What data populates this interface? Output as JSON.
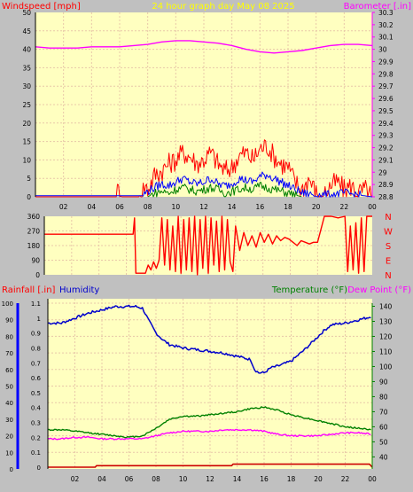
{
  "header": {
    "windspeed_label": "Windspeed [mph]",
    "title": "24 hour graph day   May 08 2025",
    "barometer_label": "Barometer [.in]"
  },
  "direction_letters": [
    "N",
    "W",
    "S",
    "E",
    "N"
  ],
  "bottom_header": {
    "rainfall_label": "Rainfall [.in]",
    "humidity_label": "Humidity",
    "temperature_label": "Temperature (°F)",
    "dewpoint_label": "Dew Point (°F)"
  },
  "colors": {
    "plot_bg": "#ffffc0",
    "frame_bg": "#c0c0c0",
    "grid": "#e8c8a8",
    "wind_gust": "#ff0000",
    "wind_avg": "#0000ff",
    "wind_min": "#008000",
    "barometer": "#ff00ff",
    "direction": "#ff0000",
    "humidity": "#0000cc",
    "temperature": "#008000",
    "dewpoint": "#ff00ff",
    "rainfall": "#cc0000",
    "title": "#ffff00"
  },
  "chart_data": [
    {
      "type": "line",
      "id": "wind-barometer",
      "x_ticks": [
        "02",
        "04",
        "06",
        "08",
        "10",
        "12",
        "14",
        "16",
        "18",
        "20",
        "22",
        "00"
      ],
      "xlim": [
        0,
        24
      ],
      "y_left_ticks": [
        "0",
        "5",
        "10",
        "15",
        "20",
        "25",
        "30",
        "35",
        "40",
        "45",
        "50"
      ],
      "ylim_left": [
        0,
        50
      ],
      "y_right_ticks": [
        "28.8",
        "28.9",
        "29",
        "29.1",
        "29.2",
        "29.3",
        "29.4",
        "29.5",
        "29.6",
        "29.7",
        "29.8",
        "29.9",
        "30",
        "30.1",
        "30.2",
        "30.3"
      ],
      "ylim_right": [
        28.8,
        30.3
      ],
      "grid": true,
      "series": [
        {
          "name": "Barometer [.in]",
          "axis": "right",
          "x": [
            0,
            1,
            2,
            3,
            4,
            5,
            6,
            7,
            8,
            9,
            10,
            11,
            12,
            13,
            14,
            15,
            16,
            17,
            18,
            19,
            20,
            21,
            22,
            23,
            24
          ],
          "y": [
            30.02,
            30.01,
            30.01,
            30.01,
            30.02,
            30.02,
            30.02,
            30.03,
            30.04,
            30.06,
            30.07,
            30.07,
            30.06,
            30.05,
            30.03,
            30.0,
            29.98,
            29.97,
            29.98,
            29.99,
            30.01,
            30.03,
            30.04,
            30.04,
            30.03
          ]
        },
        {
          "name": "gust",
          "axis": "left",
          "x": [
            0,
            5.7,
            5.9,
            6.1,
            7.4,
            7.8,
            8.0,
            8.5,
            9.0,
            9.5,
            10.0,
            10.5,
            11.0,
            11.5,
            12.0,
            12.5,
            13.0,
            13.5,
            14.0,
            14.5,
            15.0,
            15.5,
            16.0,
            16.5,
            17.0,
            17.5,
            18.0,
            18.5,
            19.0,
            19.5,
            20.0,
            20.5,
            21.0,
            21.5,
            22.0,
            22.5,
            23.0,
            23.5,
            24.0
          ],
          "y": [
            0,
            0,
            2,
            0,
            0,
            3,
            2,
            6,
            7,
            9,
            10,
            12,
            11,
            9,
            10,
            12,
            9,
            7,
            8,
            11,
            12,
            10,
            13,
            14,
            11,
            9,
            8,
            4,
            2,
            5,
            1,
            0,
            3,
            4,
            2,
            3,
            1,
            2,
            0
          ]
        },
        {
          "name": "average",
          "axis": "left",
          "x": [
            0,
            7.6,
            8.0,
            8.5,
            9.0,
            9.5,
            10.0,
            10.5,
            11.0,
            11.5,
            12.0,
            12.5,
            13.0,
            13.5,
            14.0,
            14.5,
            15.0,
            15.5,
            16.0,
            16.5,
            17.0,
            17.5,
            18.0,
            18.5,
            19.0,
            20.0,
            21.0,
            22.0,
            23.0,
            24.0
          ],
          "y": [
            0.3,
            0.3,
            1.5,
            2.5,
            3.5,
            3,
            4,
            5,
            4,
            3.5,
            4,
            5,
            3.5,
            3,
            3.5,
            5,
            4.5,
            4,
            5.5,
            6,
            5,
            4,
            3,
            2,
            1,
            0.5,
            0.5,
            1,
            0.5,
            0
          ]
        },
        {
          "name": "minimum",
          "axis": "left",
          "x": [
            8.0,
            8.5,
            9.0,
            9.5,
            10.0,
            10.5,
            11.0,
            11.5,
            12.0,
            12.5,
            13.0,
            13.5,
            14.0,
            14.5,
            15.0,
            15.5,
            16.0,
            16.5,
            17.0,
            17.5,
            18.0,
            18.5,
            19.0
          ],
          "y": [
            0,
            1,
            1.5,
            1,
            2,
            2.5,
            2,
            1.5,
            2,
            2.5,
            2,
            1,
            1.5,
            2,
            2.5,
            2,
            3,
            2.5,
            2,
            1.5,
            1,
            0.5,
            0
          ]
        }
      ]
    },
    {
      "type": "line",
      "id": "wind-direction",
      "xlim": [
        0,
        24
      ],
      "y_ticks": [
        "0",
        "90",
        "180",
        "270",
        "360"
      ],
      "ylim": [
        0,
        360
      ],
      "grid": true,
      "series": [
        {
          "name": "direction",
          "x": [
            0,
            6.5,
            6.6,
            6.7,
            7.4,
            7.6,
            7.8,
            8.0,
            8.2,
            8.4,
            8.6,
            8.8,
            9.0,
            9.2,
            9.4,
            9.6,
            9.8,
            10.0,
            10.2,
            10.4,
            10.6,
            10.8,
            11.0,
            11.2,
            11.4,
            11.6,
            11.8,
            12.0,
            12.2,
            12.4,
            12.6,
            12.8,
            13.0,
            13.2,
            13.4,
            13.6,
            13.8,
            14.0,
            14.3,
            14.6,
            14.9,
            15.2,
            15.5,
            15.8,
            16.1,
            16.4,
            16.7,
            17.0,
            17.3,
            17.6,
            17.9,
            18.2,
            18.5,
            18.8,
            19.1,
            19.4,
            19.7,
            20.0,
            20.5,
            21.0,
            21.5,
            22.0,
            22.2,
            22.4,
            22.6,
            22.8,
            23.0,
            23.2,
            23.4,
            23.6,
            24.0
          ],
          "y": [
            250,
            250,
            350,
            10,
            10,
            60,
            30,
            80,
            40,
            90,
            350,
            60,
            340,
            30,
            300,
            20,
            360,
            10,
            340,
            30,
            350,
            20,
            360,
            0,
            340,
            40,
            360,
            10,
            350,
            60,
            330,
            20,
            360,
            30,
            340,
            80,
            20,
            300,
            150,
            260,
            180,
            240,
            170,
            260,
            200,
            250,
            190,
            240,
            210,
            230,
            220,
            200,
            180,
            210,
            200,
            190,
            200,
            200,
            360,
            360,
            350,
            360,
            20,
            300,
            30,
            320,
            10,
            350,
            20,
            360,
            360
          ]
        }
      ]
    },
    {
      "type": "line",
      "id": "humidity-temperature",
      "xlim": [
        0,
        24
      ],
      "y_left_humidity_ticks": [
        "0",
        "10",
        "20",
        "30",
        "40",
        "50",
        "60",
        "70",
        "80",
        "90",
        "100"
      ],
      "ylim_humidity": [
        0,
        100
      ],
      "y_left_rain_ticks": [
        "0",
        "0.1",
        "0.2",
        "0.3",
        "0.4",
        "0.5",
        "0.6",
        "0.7",
        "0.8",
        "0.9",
        "1",
        "1.1"
      ],
      "ylim_rain": [
        0,
        1.1
      ],
      "y_right_ticks": [
        "40",
        "50",
        "60",
        "70",
        "80",
        "90",
        "100",
        "110",
        "120",
        "130",
        "140"
      ],
      "ylim_right": [
        32,
        145
      ],
      "grid": true,
      "series": [
        {
          "name": "Humidity",
          "axis": "humidity",
          "x": [
            0,
            1,
            2,
            3,
            4,
            5,
            6,
            6.5,
            7,
            7.5,
            8,
            8.5,
            9,
            10,
            11,
            12,
            13,
            14,
            15,
            15.3,
            15.6,
            16,
            16.5,
            17,
            18,
            19,
            20,
            20.5,
            21,
            22,
            23,
            24
          ],
          "y": [
            88,
            88,
            91,
            94,
            96,
            98,
            98,
            98,
            97,
            89,
            82,
            78,
            75,
            73,
            72,
            71,
            70,
            68,
            66,
            60,
            58,
            58,
            61,
            62,
            65,
            72,
            80,
            84,
            87,
            88,
            90,
            92
          ]
        },
        {
          "name": "Temperature (°F)",
          "axis": "right",
          "x": [
            0,
            1,
            2,
            3,
            4,
            5,
            6,
            7,
            8,
            9,
            10,
            11,
            12,
            13,
            14,
            15,
            16,
            17,
            18,
            19,
            20,
            21,
            22,
            23,
            24
          ],
          "y": [
            58,
            58,
            57,
            56,
            55,
            54,
            53,
            54,
            59,
            65,
            67,
            67,
            68,
            69,
            70,
            72,
            73,
            71,
            68,
            66,
            64,
            62,
            60,
            59,
            58
          ]
        },
        {
          "name": "Dew Point (°F)",
          "axis": "right",
          "x": [
            0,
            1,
            2,
            3,
            4,
            5,
            6,
            7,
            8,
            9,
            10,
            11,
            12,
            13,
            14,
            15,
            16,
            17,
            18,
            19,
            20,
            21,
            22,
            23,
            24
          ],
          "y": [
            52,
            52,
            53,
            53,
            52,
            52,
            52,
            52,
            54,
            56,
            57,
            57,
            57,
            58,
            58,
            58,
            57,
            55,
            54,
            54,
            54,
            55,
            56,
            56,
            55
          ]
        },
        {
          "name": "Rainfall [.in]",
          "axis": "rain",
          "x": [
            0,
            3.5,
            3.6,
            13.6,
            13.7,
            23.8,
            24
          ],
          "y": [
            0,
            0,
            0.01,
            0.01,
            0.02,
            0.02,
            0
          ]
        }
      ]
    }
  ]
}
